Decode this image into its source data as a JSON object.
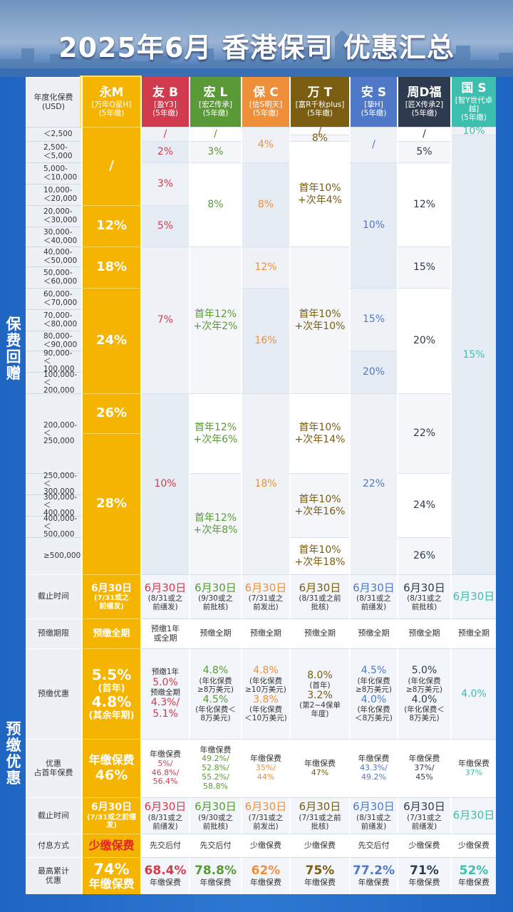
{
  "title": "2025年6月 香港保司 优惠汇总",
  "side": {
    "premium_rebate": "保费回赠",
    "prepay_offer": "预缴优惠"
  },
  "colors": {
    "yong": "#f5b400",
    "you": "#d23a4e",
    "hong": "#5a9a36",
    "bao": "#ef8f3a",
    "wan": "#7a5d10",
    "an": "#4f79c8",
    "zhou": "#2e3b4f",
    "guo": "#3cbfae"
  },
  "labels": {
    "header": [
      "年度化保费",
      "(USD)"
    ],
    "cutoff1": "截止时间",
    "prepay_period": "预缴期限",
    "prepay_offer": "预缴优惠",
    "share": [
      "优惠",
      "占首年保费"
    ],
    "cutoff2": "截止时间",
    "pay_method": "付息方式",
    "max_total": [
      "最高累计",
      "优惠"
    ]
  },
  "bands": [
    [
      "＜2,500"
    ],
    [
      "2,500-",
      "＜5,000"
    ],
    [
      "5,000-",
      "＜10,000"
    ],
    [
      "10,000-",
      "＜20,000"
    ],
    [
      "20,000-",
      "＜30,000"
    ],
    [
      "30,000-",
      "＜40,000"
    ],
    [
      "40,000-",
      "＜50,000"
    ],
    [
      "50,000-",
      "＜60,000"
    ],
    [
      "60,000-",
      "＜70,000"
    ],
    [
      "70,000-",
      "＜80,000"
    ],
    [
      "80,000-",
      "＜90,000"
    ],
    [
      "90,000-",
      "＜100,000"
    ],
    [
      "100,000-",
      "＜200,000"
    ],
    [
      "200,000-",
      "＜250,000"
    ],
    [
      "250,000-",
      "＜300,000"
    ],
    [
      "300,000-",
      "＜400,000"
    ],
    [
      "400,000-",
      "＜500,000"
    ],
    [
      "≥500,000"
    ]
  ],
  "companies": [
    {
      "key": "yong",
      "name": "永M",
      "product": "[万年Q星H]",
      "term": "(5年缴)",
      "rebate": [
        "/",
        "12%",
        "18%",
        "24%",
        "26%",
        "28%"
      ],
      "cutoff1": [
        "6月30日",
        "(7/31或之",
        "前缮发)"
      ],
      "period": "预缴全期",
      "offer": [
        "5.5%",
        "(首年)",
        "4.8%",
        "(其余年期)"
      ],
      "share": [
        "年缴保费",
        "46%"
      ],
      "cutoff2": [
        "6月30日",
        "(7/31或之前缮发)"
      ],
      "pay": "少缴保费",
      "max": [
        "74%",
        "年缴保费"
      ]
    },
    {
      "key": "you",
      "name": "友 B",
      "product": "[盈Y3]",
      "term": "(5年缴)",
      "rebate": [
        "/",
        "2%",
        "3%",
        "5%",
        "7%",
        "10%"
      ],
      "cutoff1": [
        "6月30日",
        "(8/31或之",
        "前缮发)"
      ],
      "period": [
        "预缴1年",
        "或全期"
      ],
      "offer": [
        "预缴1年",
        "5.0%",
        "预缴全期",
        "4.3%/",
        "5.1%"
      ],
      "share": [
        "年缴保费",
        "5%/",
        "46.8%/",
        "56.4%"
      ],
      "cutoff2": [
        "6月30日",
        "(8/31或之",
        "前缮发)"
      ],
      "pay": "先交后付",
      "max": [
        "68.4%",
        "年缴保费"
      ]
    },
    {
      "key": "hong",
      "name": "宏 L",
      "product": "[宏Z传承]",
      "term": "(5年缴)",
      "rebate": [
        "/",
        "3%",
        "8%",
        [
          "首年12%",
          "+次年2%"
        ],
        [
          "首年12%",
          "+次年6%"
        ],
        [
          "首年12%",
          "+次年8%"
        ]
      ],
      "cutoff1": [
        "6月30日",
        "(9/30或之",
        "前批核)"
      ],
      "period": "预缴全期",
      "offer": [
        "4.8%",
        "(年化保费",
        "≥8万美元)",
        "4.5%",
        "(年化保费＜",
        "8万美元)"
      ],
      "share": [
        "年缴保费",
        "49.2%/",
        "52.8%/",
        "55.2%/",
        "58.8%"
      ],
      "cutoff2": [
        "6月30日",
        "(9/30或之",
        "前批核)"
      ],
      "pay": "先交后付",
      "max": [
        "78.8%",
        "年缴保费"
      ]
    },
    {
      "key": "bao",
      "name": "保 C",
      "product": "[信S明天]",
      "term": "(5年缴)",
      "rebate": [
        "4%",
        "8%",
        "12%",
        "16%",
        "18%"
      ],
      "cutoff1": [
        "6月30日",
        "(7/31或之",
        "前发出)"
      ],
      "period": "预缴全期",
      "offer": [
        "4.8%",
        "(年化保费",
        "≥10万美元)",
        "3.8%",
        "(年化保费",
        "＜10万美元)"
      ],
      "share": [
        "年缴保费",
        "35%/",
        "44%"
      ],
      "cutoff2": [
        "6月30日",
        "(7/31或之",
        "前发出)"
      ],
      "pay": "少缴保费",
      "max": [
        "62%",
        "年缴保费"
      ]
    },
    {
      "key": "wan",
      "name": "万 T",
      "product": "[富R千秋plus]",
      "term": "(5年缴)",
      "rebate": [
        "/",
        "8%",
        [
          "首年10%",
          "+次年4%"
        ],
        [
          "首年10%",
          "+次年10%"
        ],
        [
          "首年10%",
          "+次年14%"
        ],
        [
          "首年10%",
          "+次年16%"
        ],
        [
          "首年10%",
          "+次年18%"
        ]
      ],
      "cutoff1": [
        "6月30日",
        "(8/31或之前",
        "批核)"
      ],
      "period": "预缴全期",
      "offer": [
        "8.0%",
        "(首年)",
        "3.2%",
        "(第2~4保单",
        "年度)"
      ],
      "share": [
        "年缴保费",
        "47%"
      ],
      "cutoff2": [
        "6月30日",
        "(7/31或之前",
        "批核)"
      ],
      "pay": "少缴保费",
      "max": [
        "75%",
        "年缴保费"
      ]
    },
    {
      "key": "an",
      "name": "安 S",
      "product": "[挚H]",
      "term": "(5年缴)",
      "rebate": [
        "/",
        "10%",
        "15%",
        "20%",
        "22%"
      ],
      "cutoff1": [
        "6月30日",
        "(8/31或之",
        "前缮发)"
      ],
      "period": "预缴全期",
      "offer": [
        "4.5%",
        "(年化保费",
        "≥8万美元)",
        "4.0%",
        "(年化保费",
        "＜8万美元)"
      ],
      "share": [
        "年缴保费",
        "43.3%/",
        "49.2%"
      ],
      "cutoff2": [
        "6月30日",
        "(8/31或之",
        "前缮发)"
      ],
      "pay": "先交后付",
      "max": [
        "77.2%",
        "年缴保费"
      ]
    },
    {
      "key": "zhou",
      "name": "周D福",
      "product": "[匠X传承2]",
      "term": "(5年缴)",
      "rebate": [
        "/",
        "5%",
        "12%",
        "15%",
        "20%",
        "22%",
        "24%",
        "26%"
      ],
      "cutoff1": [
        "6月30日",
        "(8/31或之",
        "前批核)"
      ],
      "period": "预缴全期",
      "offer": [
        "5.0%",
        "(年化保费",
        "≥8万美元)",
        "4.0%",
        "(年化保费＜",
        "8万美元)"
      ],
      "share": [
        "年缴保费",
        "37%/",
        "45%"
      ],
      "cutoff2": [
        "6月30日",
        "(7/31或之",
        "前缮发)"
      ],
      "pay": "少缴保费",
      "max": [
        "71%",
        "年缴保费"
      ]
    },
    {
      "key": "guo",
      "name": "国 S",
      "product": "[智Y世代卓越]",
      "term": "(5年缴)",
      "rebate": [
        "10%",
        "15%"
      ],
      "cutoff1": [
        "6月30日"
      ],
      "period": "预缴全期",
      "offer": [
        "4.0%"
      ],
      "share": [
        "年缴保费",
        "37%"
      ],
      "cutoff2": [
        "6月30日"
      ],
      "pay": "少缴保费",
      "max": [
        "52%",
        "年缴保费"
      ]
    }
  ]
}
